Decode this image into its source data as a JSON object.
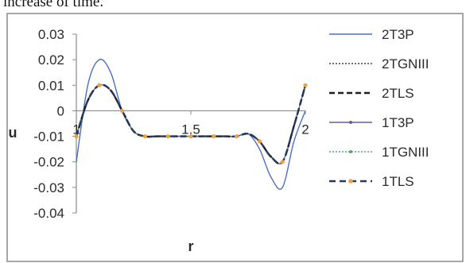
{
  "caption": "increase of time.",
  "chart_data": {
    "type": "line",
    "xlabel": "r",
    "ylabel": "u",
    "xlim": [
      1,
      2
    ],
    "ylim": [
      -0.04,
      0.03
    ],
    "x_tick_labels": [
      {
        "value": 1,
        "label": "1"
      },
      {
        "value": 1.5,
        "label": "1.5"
      },
      {
        "value": 2,
        "label": "2"
      }
    ],
    "y_tick_labels": [
      {
        "value": 0.03,
        "label": "0.03"
      },
      {
        "value": 0.02,
        "label": "0.02"
      },
      {
        "value": 0.01,
        "label": "0.01"
      },
      {
        "value": 0,
        "label": "0"
      },
      {
        "value": -0.01,
        "label": "-0.01"
      },
      {
        "value": -0.02,
        "label": "-0.02"
      },
      {
        "value": -0.03,
        "label": "-0.03"
      },
      {
        "value": -0.04,
        "label": "-0.04"
      }
    ],
    "grid": false,
    "legend_position": "right",
    "x": [
      1.0,
      1.05,
      1.1,
      1.15,
      1.2,
      1.25,
      1.3,
      1.35,
      1.4,
      1.45,
      1.5,
      1.55,
      1.6,
      1.65,
      1.7,
      1.75,
      1.8,
      1.85,
      1.9,
      1.95,
      2.0
    ],
    "series": [
      {
        "name": "2T3P",
        "color": "#4a6fc4",
        "dash": "",
        "marker": "none",
        "values": [
          -0.02,
          0.01,
          0.02,
          0.015,
          0.0,
          -0.008,
          -0.01,
          -0.01,
          -0.01,
          -0.01,
          -0.01,
          -0.01,
          -0.01,
          -0.01,
          -0.01,
          -0.009,
          -0.015,
          -0.026,
          -0.03,
          -0.012,
          0.0
        ]
      },
      {
        "name": "2TGNIII",
        "color": "#444444",
        "dash": "2,2",
        "marker": "none",
        "values": [
          -0.01,
          0.004,
          0.01,
          0.008,
          0.0,
          -0.008,
          -0.01,
          -0.01,
          -0.01,
          -0.01,
          -0.01,
          -0.01,
          -0.01,
          -0.01,
          -0.01,
          -0.009,
          -0.012,
          -0.018,
          -0.02,
          -0.006,
          0.01
        ]
      },
      {
        "name": "2TLS",
        "color": "#1f1f1f",
        "dash": "7,4",
        "marker": "none",
        "values": [
          -0.01,
          0.004,
          0.01,
          0.008,
          0.0,
          -0.008,
          -0.01,
          -0.01,
          -0.01,
          -0.01,
          -0.01,
          -0.01,
          -0.01,
          -0.01,
          -0.01,
          -0.009,
          -0.012,
          -0.018,
          -0.02,
          -0.006,
          0.01
        ]
      },
      {
        "name": "1T3P",
        "color": "#6a5aa8",
        "dash": "",
        "marker": "dot",
        "values": [
          -0.01,
          0.004,
          0.01,
          0.008,
          0.0,
          -0.008,
          -0.01,
          -0.01,
          -0.01,
          -0.01,
          -0.01,
          -0.01,
          -0.01,
          -0.01,
          -0.01,
          -0.009,
          -0.012,
          -0.018,
          -0.02,
          -0.006,
          0.01
        ]
      },
      {
        "name": "1TGNIII",
        "color": "#5aa17a",
        "dash": "2,2",
        "marker": "dot",
        "values": [
          -0.01,
          0.004,
          0.01,
          0.008,
          0.0,
          -0.008,
          -0.01,
          -0.01,
          -0.01,
          -0.01,
          -0.01,
          -0.01,
          -0.01,
          -0.01,
          -0.01,
          -0.009,
          -0.012,
          -0.018,
          -0.02,
          -0.006,
          0.01
        ]
      },
      {
        "name": "1TLS",
        "color": "#243a5e",
        "dash": "8,5",
        "marker": "orange-dot",
        "values": [
          -0.01,
          0.004,
          0.01,
          0.008,
          0.0,
          -0.008,
          -0.01,
          -0.01,
          -0.01,
          -0.01,
          -0.01,
          -0.01,
          -0.01,
          -0.01,
          -0.01,
          -0.009,
          -0.012,
          -0.018,
          -0.02,
          -0.006,
          0.01
        ]
      }
    ]
  }
}
